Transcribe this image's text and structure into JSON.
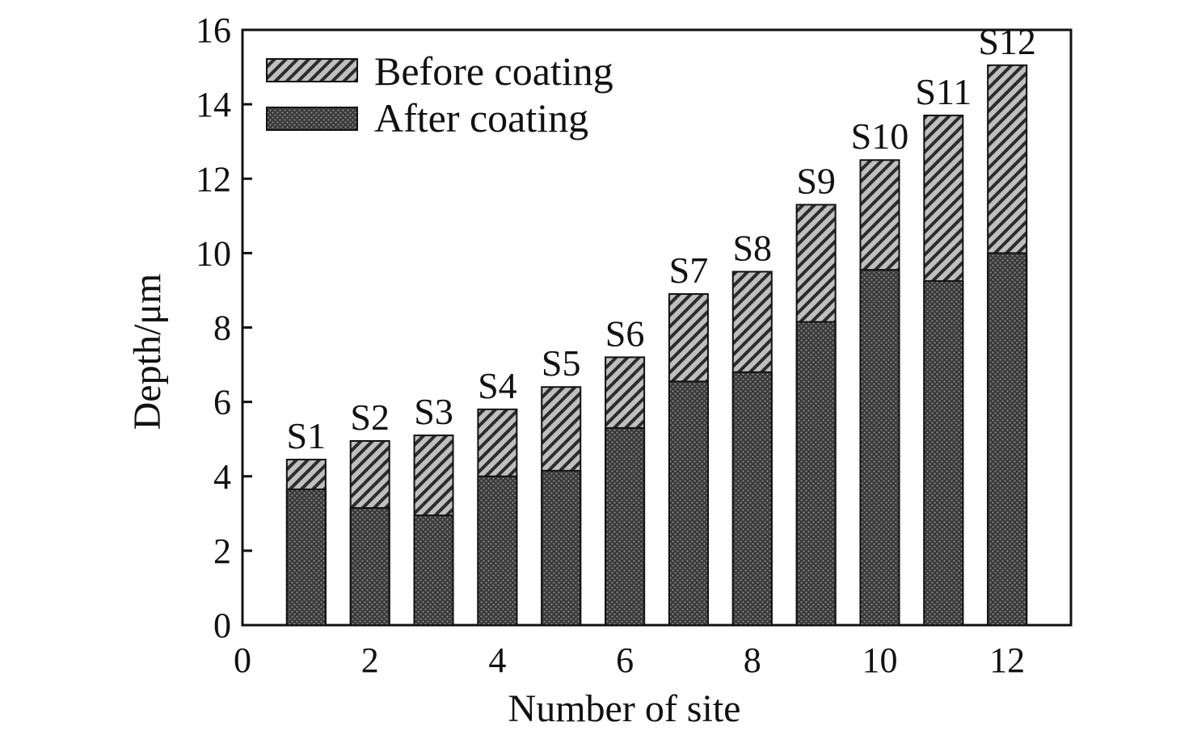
{
  "chart_data": {
    "type": "bar",
    "stacked": false,
    "overlay": true,
    "xlabel": "Number of site",
    "ylabel": "Depth/μm",
    "xlim": [
      0,
      13
    ],
    "ylim": [
      0,
      16
    ],
    "xticks": [
      0,
      2,
      4,
      6,
      8,
      10,
      12
    ],
    "yticks": [
      0,
      2,
      4,
      6,
      8,
      10,
      12,
      14,
      16
    ],
    "x": [
      1,
      2,
      3,
      4,
      5,
      6,
      7,
      8,
      9,
      10,
      11,
      12
    ],
    "bar_labels": [
      "S1",
      "S2",
      "S3",
      "S4",
      "S5",
      "S6",
      "S7",
      "S8",
      "S9",
      "S10",
      "S11",
      "S12"
    ],
    "series": [
      {
        "name": "Before coating",
        "pattern": "diagonal-hatch",
        "values": [
          4.45,
          4.95,
          5.1,
          5.8,
          6.4,
          7.2,
          8.9,
          9.5,
          11.3,
          12.5,
          13.7,
          15.05
        ]
      },
      {
        "name": "After coating",
        "pattern": "dots",
        "values": [
          3.65,
          3.15,
          2.95,
          4.0,
          4.15,
          5.3,
          6.55,
          6.8,
          8.15,
          9.55,
          9.25,
          10.0
        ]
      }
    ],
    "legend_position": "top-left",
    "grid": false
  }
}
